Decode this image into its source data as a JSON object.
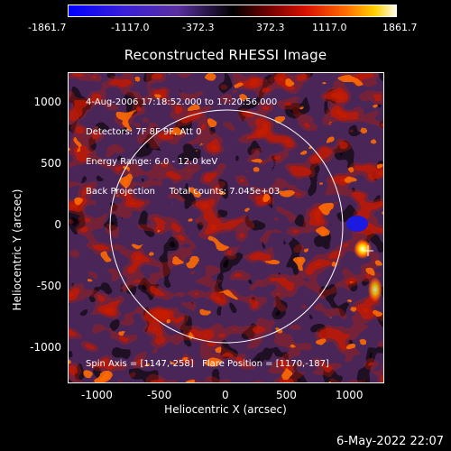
{
  "colorbar": {
    "labels": [
      "-1861.7",
      "-1117.0",
      "-372.3",
      "372.3",
      "1117.0",
      "1861.7"
    ]
  },
  "title": "Reconstructed RHESSI Image",
  "info": {
    "time_range": "4-Aug-2006 17:18:52.000 to 17:20:56.000",
    "detectors": "Detectors: 7F 8F 9F, Att 0",
    "energy_range": "Energy Range: 6.0 - 12.0 keV",
    "method_counts": "Back Projection     Total counts: 7.045e+03"
  },
  "footer": {
    "spin_axis": "Spin Axis = [1147,-258]",
    "flare_position": "Flare Position = [1170,-187]"
  },
  "axes": {
    "x_title": "Heliocentric X (arcsec)",
    "y_title": "Heliocentric Y (arcsec)",
    "x_ticks": [
      "-1000",
      "-500",
      "0",
      "500",
      "1000"
    ],
    "y_ticks": [
      "1000",
      "500",
      "0",
      "-500",
      "-1000"
    ]
  },
  "date_stamp": "6-May-2022 22:07"
}
